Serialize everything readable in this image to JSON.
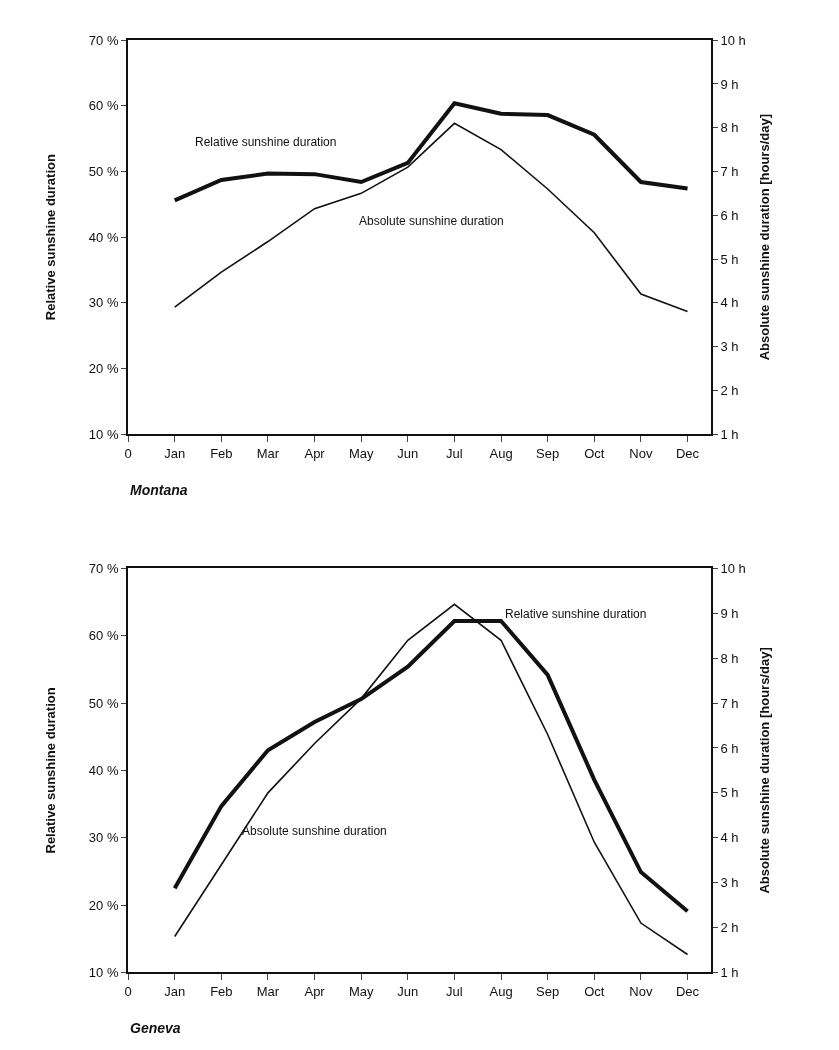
{
  "chart_data": [
    {
      "type": "line",
      "categories": [
        "0",
        "Jan",
        "Feb",
        "Mar",
        "Apr",
        "May",
        "Jun",
        "Jul",
        "Aug",
        "Sep",
        "Oct",
        "Nov",
        "Dec"
      ],
      "ylabel": "Relative sunshine duration",
      "y2label": "Absolute sunshine duration [hours/day]",
      "ylim": [
        10,
        70
      ],
      "yticks": [
        {
          "value": 10,
          "label": "10 %"
        },
        {
          "value": 20,
          "label": "20 %"
        },
        {
          "value": 30,
          "label": "30 %"
        },
        {
          "value": 40,
          "label": "40 %"
        },
        {
          "value": 50,
          "label": "50 %"
        },
        {
          "value": 60,
          "label": "60 %"
        },
        {
          "value": 70,
          "label": "70 %"
        }
      ],
      "y2lim": [
        1,
        10
      ],
      "y2ticks": [
        {
          "value": 1,
          "label": "1 h"
        },
        {
          "value": 2,
          "label": "2 h"
        },
        {
          "value": 3,
          "label": "3 h"
        },
        {
          "value": 4,
          "label": "4 h"
        },
        {
          "value": 5,
          "label": "5 h"
        },
        {
          "value": 6,
          "label": "6 h"
        },
        {
          "value": 7,
          "label": "7 h"
        },
        {
          "value": 8,
          "label": "8 h"
        },
        {
          "value": 9,
          "label": "9 h"
        },
        {
          "value": 10,
          "label": "10 h"
        }
      ],
      "legend": false,
      "marker": "none",
      "line_style": "solid",
      "series": [
        {
          "name": "Relative sunshine duration",
          "color": "#111111",
          "values": [
            null,
            45.6,
            48.7,
            49.7,
            49.6,
            48.4,
            51.3,
            60.4,
            58.8,
            58.6,
            55.6,
            48.4,
            47.4
          ]
        },
        {
          "name": "Absolute sunshine duration",
          "color": "#111111",
          "axis": "y2",
          "values": [
            null,
            3.9,
            4.7,
            5.4,
            6.15,
            6.5,
            7.1,
            8.1,
            7.5,
            6.6,
            5.6,
            4.2,
            3.8
          ]
        }
      ],
      "annotations": [
        "Montana"
      ]
    },
    {
      "type": "line",
      "categories": [
        "0",
        "Jan",
        "Feb",
        "Mar",
        "Apr",
        "May",
        "Jun",
        "Jul",
        "Aug",
        "Sep",
        "Oct",
        "Nov",
        "Dec"
      ],
      "ylabel": "Relative sunshine duration",
      "y2label": "Absolute sunshine duration [hours/day]",
      "ylim": [
        10,
        70
      ],
      "yticks": [
        {
          "value": 10,
          "label": "10 %"
        },
        {
          "value": 20,
          "label": "20 %"
        },
        {
          "value": 30,
          "label": "30 %"
        },
        {
          "value": 40,
          "label": "40 %"
        },
        {
          "value": 50,
          "label": "50 %"
        },
        {
          "value": 60,
          "label": "60 %"
        },
        {
          "value": 70,
          "label": "70 %"
        }
      ],
      "y2lim": [
        1,
        10
      ],
      "y2ticks": [
        {
          "value": 1,
          "label": "1 h"
        },
        {
          "value": 2,
          "label": "2 h"
        },
        {
          "value": 3,
          "label": "3 h"
        },
        {
          "value": 4,
          "label": "4 h"
        },
        {
          "value": 5,
          "label": "5 h"
        },
        {
          "value": 6,
          "label": "6 h"
        },
        {
          "value": 7,
          "label": "7 h"
        },
        {
          "value": 8,
          "label": "8 h"
        },
        {
          "value": 9,
          "label": "9 h"
        },
        {
          "value": 10,
          "label": "10 h"
        }
      ],
      "legend": false,
      "marker": "none",
      "line_style": "solid",
      "series": [
        {
          "name": "Relative sunshine duration",
          "color": "#111111",
          "values": [
            null,
            22.5,
            34.7,
            43.0,
            47.2,
            50.6,
            55.4,
            62.2,
            62.2,
            54.2,
            38.6,
            24.9,
            19.1
          ]
        },
        {
          "name": "Absolute sunshine duration",
          "color": "#111111",
          "axis": "y2",
          "values": [
            null,
            1.8,
            3.4,
            5.0,
            6.1,
            7.1,
            8.4,
            9.2,
            8.4,
            6.3,
            3.9,
            2.1,
            1.4
          ]
        }
      ],
      "annotations": [
        "Geneva"
      ]
    }
  ]
}
